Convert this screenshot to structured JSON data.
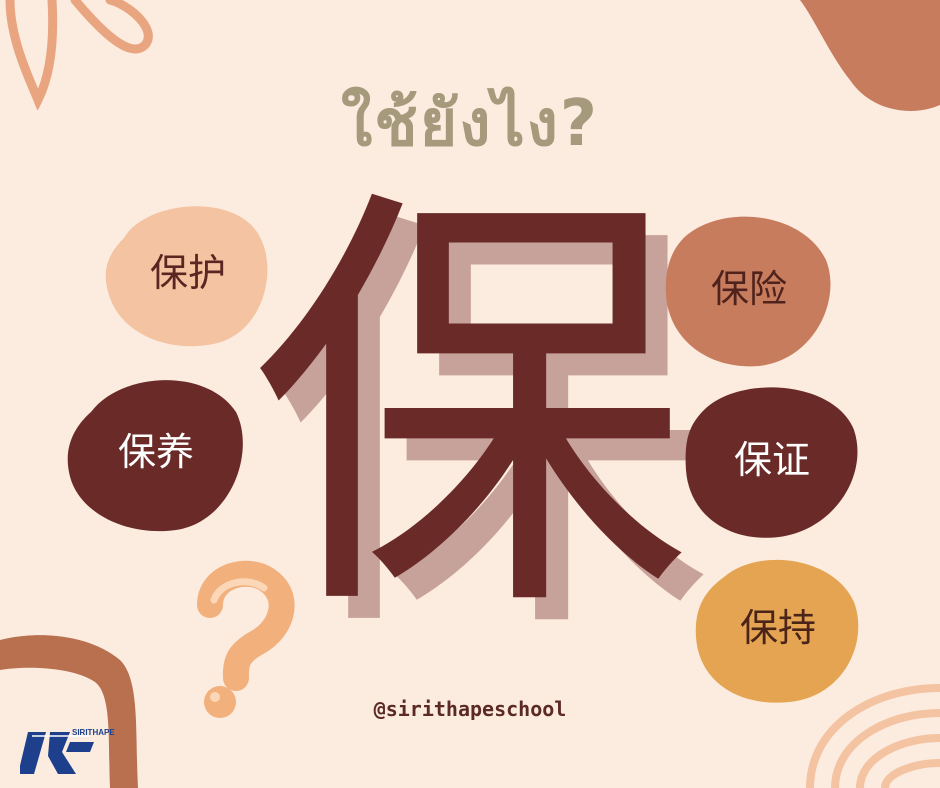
{
  "title": "ใช้ยังไง?",
  "main_character": "保",
  "words": [
    {
      "text": "保护",
      "bg": "#f4c3a1",
      "color": "#5b2521"
    },
    {
      "text": "保险",
      "bg": "#c87c5e",
      "color": "#4f221c"
    },
    {
      "text": "保养",
      "bg": "#6a2a28",
      "color": "#ffffff"
    },
    {
      "text": "保证",
      "bg": "#6a2a28",
      "color": "#ffffff"
    },
    {
      "text": "保持",
      "bg": "#e4a452",
      "color": "#4a2418"
    }
  ],
  "handle": "@sirithapeschool",
  "logo": {
    "brand_text": "SIRITHAPE",
    "mark_icon": "sirithape-logo-icon"
  },
  "colors": {
    "background": "#fcebdf",
    "accent_dark": "#6a2a28",
    "accent_brown": "#c87c5e",
    "accent_orange": "#e4a452",
    "accent_peach": "#f4c3a1",
    "title_color": "#a59a7c"
  }
}
